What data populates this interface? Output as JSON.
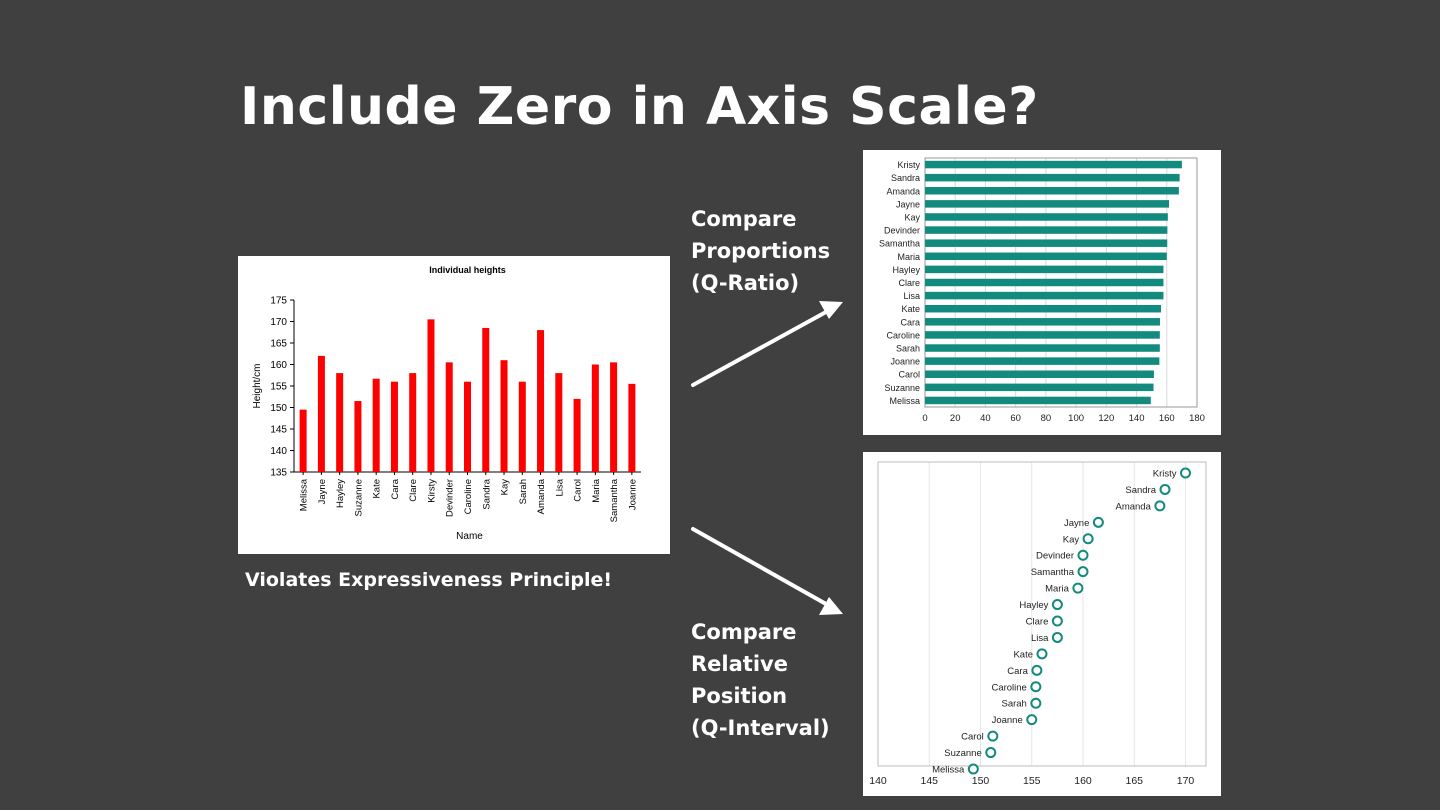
{
  "slide": {
    "title": "Include Zero in Axis Scale?",
    "violates_caption": "Violates Expressiveness Principle!",
    "label_ratio": "Compare\nProportions\n(Q-Ratio)",
    "label_interval": "Compare\nRelative\nPosition\n(Q-Interval)",
    "colors": {
      "background": "#404040",
      "text": "#ffffff",
      "bar_red": "#ff0000",
      "teal": "#138a7e"
    }
  },
  "chart_data": [
    {
      "type": "bar",
      "title": "Individual heights",
      "xlabel": "Name",
      "ylabel": "Height/cm",
      "ylim": [
        135,
        175
      ],
      "yticks": [
        135,
        140,
        145,
        150,
        155,
        160,
        165,
        170,
        175
      ],
      "categories": [
        "Melissa",
        "Jayne",
        "Hayley",
        "Suzanne",
        "Kate",
        "Cara",
        "Clare",
        "Kirsty",
        "Devinder",
        "Caroline",
        "Sandra",
        "Kay",
        "Sarah",
        "Amanda",
        "Lisa",
        "Carol",
        "Maria",
        "Samantha",
        "Joanne"
      ],
      "values": [
        149.5,
        162,
        158,
        151.5,
        156.7,
        156,
        158,
        170.5,
        160.5,
        156,
        168.5,
        161,
        156,
        168,
        158,
        152,
        160,
        160.5,
        155.5
      ],
      "color": "#ff0000"
    },
    {
      "type": "bar",
      "orientation": "horizontal",
      "title": "",
      "xlim": [
        0,
        180
      ],
      "xticks": [
        0,
        20,
        40,
        60,
        80,
        100,
        120,
        140,
        160,
        180
      ],
      "categories": [
        "Kristy",
        "Sandra",
        "Amanda",
        "Jayne",
        "Kay",
        "Devinder",
        "Samantha",
        "Maria",
        "Hayley",
        "Clare",
        "Lisa",
        "Kate",
        "Cara",
        "Caroline",
        "Sarah",
        "Joanne",
        "Carol",
        "Suzanne",
        "Melissa"
      ],
      "values": [
        170,
        168.5,
        168,
        161.5,
        160.7,
        160.4,
        160.3,
        160,
        157.8,
        157.8,
        157.8,
        156.2,
        155.5,
        155.4,
        155.4,
        155.1,
        151.5,
        151.2,
        149.4
      ],
      "color": "#138a7e"
    },
    {
      "type": "scatter",
      "style": "dot-plot",
      "title": "",
      "xlim": [
        140,
        172
      ],
      "xticks": [
        140,
        145,
        150,
        155,
        160,
        165,
        170
      ],
      "categories": [
        "Kristy",
        "Sandra",
        "Amanda",
        "Jayne",
        "Kay",
        "Devinder",
        "Samantha",
        "Maria",
        "Hayley",
        "Clare",
        "Lisa",
        "Kate",
        "Cara",
        "Caroline",
        "Sarah",
        "Joanne",
        "Carol",
        "Suzanne",
        "Melissa"
      ],
      "values": [
        170,
        168,
        167.5,
        161.5,
        160.5,
        160,
        160,
        159.5,
        157.5,
        157.5,
        157.5,
        156,
        155.5,
        155.4,
        155.4,
        155,
        151.2,
        151,
        149.3
      ],
      "color": "#138a7e"
    }
  ]
}
